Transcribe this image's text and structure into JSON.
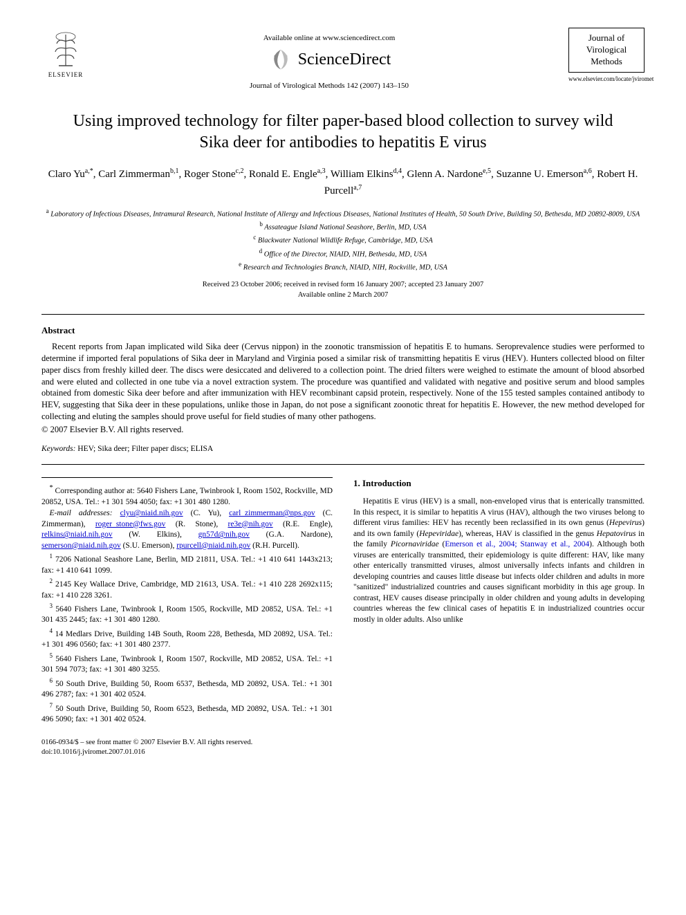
{
  "header": {
    "elsevier_label": "ELSEVIER",
    "available_text": "Available online at www.sciencedirect.com",
    "sciencedirect_label": "ScienceDirect",
    "journal_ref": "Journal of Virological Methods 142 (2007) 143–150",
    "journal_name_line1": "Journal of",
    "journal_name_line2": "Virological",
    "journal_name_line3": "Methods",
    "journal_url": "www.elsevier.com/locate/jviromet"
  },
  "title": "Using improved technology for filter paper-based blood collection to survey wild Sika deer for antibodies to hepatitis E virus",
  "authors_html": "Claro Yu<sup>a,*</sup>, Carl Zimmerman<sup>b,1</sup>, Roger Stone<sup>c,2</sup>, Ronald E. Engle<sup>a,3</sup>, William Elkins<sup>d,4</sup>, Glenn A. Nardone<sup>e,5</sup>, Suzanne U. Emerson<sup>a,6</sup>, Robert H. Purcell<sup>a,7</sup>",
  "affiliations": [
    {
      "sup": "a",
      "text": "Laboratory of Infectious Diseases, Intramural Research, National Institute of Allergy and Infectious Diseases, National Institutes of Health, 50 South Drive, Building 50, Bethesda, MD 20892-8009, USA"
    },
    {
      "sup": "b",
      "text": "Assateague Island National Seashore, Berlin, MD, USA"
    },
    {
      "sup": "c",
      "text": "Blackwater National Wildlife Refuge, Cambridge, MD, USA"
    },
    {
      "sup": "d",
      "text": "Office of the Director, NIAID, NIH, Bethesda, MD, USA"
    },
    {
      "sup": "e",
      "text": "Research and Technologies Branch, NIAID, NIH, Rockville, MD, USA"
    }
  ],
  "dates": {
    "received": "Received 23 October 2006; received in revised form 16 January 2007; accepted 23 January 2007",
    "online": "Available online 2 March 2007"
  },
  "abstract": {
    "heading": "Abstract",
    "text": "Recent reports from Japan implicated wild Sika deer (Cervus nippon) in the zoonotic transmission of hepatitis E to humans. Seroprevalence studies were performed to determine if imported feral populations of Sika deer in Maryland and Virginia posed a similar risk of transmitting hepatitis E virus (HEV). Hunters collected blood on filter paper discs from freshly killed deer. The discs were desiccated and delivered to a collection point. The dried filters were weighed to estimate the amount of blood absorbed and were eluted and collected in one tube via a novel extraction system. The procedure was quantified and validated with negative and positive serum and blood samples obtained from domestic Sika deer before and after immunization with HEV recombinant capsid protein, respectively. None of the 155 tested samples contained antibody to HEV, suggesting that Sika deer in these populations, unlike those in Japan, do not pose a significant zoonotic threat for hepatitis E. However, the new method developed for collecting and eluting the samples should prove useful for field studies of many other pathogens.",
    "copyright": "© 2007 Elsevier B.V. All rights reserved."
  },
  "keywords": {
    "label": "Keywords:",
    "text": "HEV; Sika deer; Filter paper discs; ELISA"
  },
  "footnotes": {
    "corresponding": "Corresponding author at: 5640 Fishers Lane, Twinbrook I, Room 1502, Rockville, MD 20852, USA. Tel.: +1 301 594 4050; fax: +1 301 480 1280.",
    "email_label": "E-mail addresses:",
    "emails": [
      {
        "email": "clyu@niaid.nih.gov",
        "name": "(C. Yu)"
      },
      {
        "email": "carl_zimmerman@nps.gov",
        "name": "(C. Zimmerman)"
      },
      {
        "email": "roger_stone@fws.gov",
        "name": "(R. Stone)"
      },
      {
        "email": "re3e@nih.gov",
        "name": "(R.E. Engle)"
      },
      {
        "email": "relkins@niaid.nih.gov",
        "name": "(W. Elkins)"
      },
      {
        "email": "gn57d@nih.gov",
        "name": "(G.A. Nardone)"
      },
      {
        "email": "semerson@niaid.nih.gov",
        "name": "(S.U. Emerson)"
      },
      {
        "email": "rpurcell@niaid.nih.gov",
        "name": "(R.H. Purcell)"
      }
    ],
    "numbered": [
      {
        "n": "1",
        "text": "7206 National Seashore Lane, Berlin, MD 21811, USA. Tel.: +1 410 641 1443x213; fax: +1 410 641 1099."
      },
      {
        "n": "2",
        "text": "2145 Key Wallace Drive, Cambridge, MD 21613, USA. Tel.: +1 410 228 2692x115; fax: +1 410 228 3261."
      },
      {
        "n": "3",
        "text": "5640 Fishers Lane, Twinbrook I, Room 1505, Rockville, MD 20852, USA. Tel.: +1 301 435 2445; fax: +1 301 480 1280."
      },
      {
        "n": "4",
        "text": "14 Medlars Drive, Building 14B South, Room 228, Bethesda, MD 20892, USA. Tel.: +1 301 496 0560; fax: +1 301 480 2377."
      },
      {
        "n": "5",
        "text": "5640 Fishers Lane, Twinbrook I, Room 1507, Rockville, MD 20852, USA. Tel.: +1 301 594 7073; fax: +1 301 480 3255."
      },
      {
        "n": "6",
        "text": "50 South Drive, Building 50, Room 6537, Bethesda, MD 20892, USA. Tel.: +1 301 496 2787; fax: +1 301 402 0524."
      },
      {
        "n": "7",
        "text": "50 South Drive, Building 50, Room 6523, Bethesda, MD 20892, USA. Tel.: +1 301 496 5090; fax: +1 301 402 0524."
      }
    ]
  },
  "intro": {
    "heading": "1. Introduction",
    "text_parts": [
      "Hepatitis E virus (HEV) is a small, non-enveloped virus that is enterically transmitted. In this respect, it is similar to hepatitis A virus (HAV), although the two viruses belong to different virus families: HEV has recently been reclassified in its own genus (",
      "Hepevirus",
      ") and its own family (",
      "Hepeviridae",
      "), whereas, HAV is classified in the genus ",
      "Hepatovirus",
      " in the family ",
      "Picornaviridae",
      " (",
      "Emerson et al., 2004; Stanway et al., 2004",
      "). Although both viruses are enterically transmitted, their epidemiology is quite different: HAV, like many other enterically transmitted viruses, almost universally infects infants and children in developing countries and causes little disease but infects older children and adults in more \"sanitized\" industrialized countries and causes significant morbidity in this age group. In contrast, HEV causes disease principally in older children and young adults in developing countries whereas the few clinical cases of hepatitis E in industrialized countries occur mostly in older adults. Also unlike"
    ]
  },
  "footer": {
    "issn": "0166-0934/$ – see front matter © 2007 Elsevier B.V. All rights reserved.",
    "doi": "doi:10.1016/j.jviromet.2007.01.016"
  },
  "colors": {
    "link": "#0000cc",
    "text": "#000000",
    "bg": "#ffffff"
  }
}
